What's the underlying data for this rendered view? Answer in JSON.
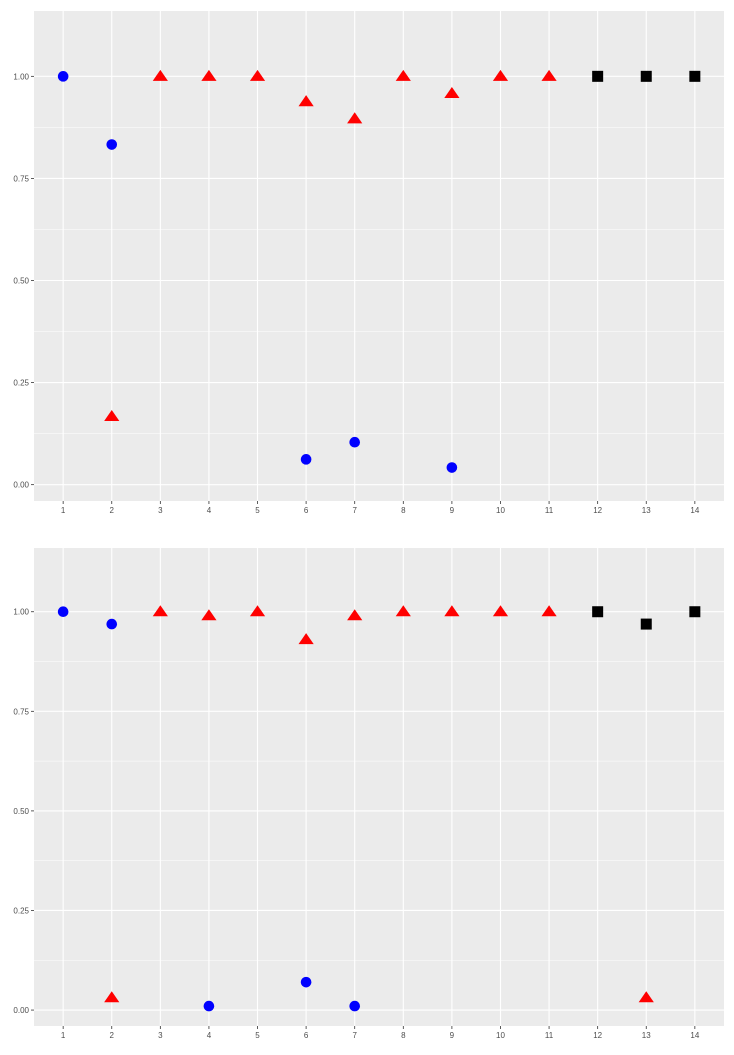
{
  "chart_data": [
    {
      "type": "scatter",
      "title": "",
      "xlabel": "",
      "ylabel": "",
      "xlim": [
        0.4,
        14.6
      ],
      "ylim": [
        -0.04,
        1.16
      ],
      "x_ticks": [
        1,
        2,
        3,
        4,
        5,
        6,
        7,
        8,
        9,
        10,
        11,
        12,
        13,
        14
      ],
      "y_ticks": [
        0.0,
        0.25,
        0.5,
        0.75,
        1.0
      ],
      "y_tick_labels": [
        "0.00",
        "0.25",
        "0.50",
        "0.75",
        "1.00"
      ],
      "grid": true,
      "legend": "none",
      "series": [
        {
          "marker": "circle",
          "color": "#0000ff",
          "points": [
            [
              1,
              1.0
            ],
            [
              2,
              0.833
            ],
            [
              6,
              0.062
            ],
            [
              7,
              0.104
            ],
            [
              9,
              0.042
            ]
          ]
        },
        {
          "marker": "triangle",
          "color": "#ff0000",
          "points": [
            [
              2,
              0.167
            ],
            [
              3,
              1.0
            ],
            [
              4,
              1.0
            ],
            [
              5,
              1.0
            ],
            [
              6,
              0.938
            ],
            [
              7,
              0.896
            ],
            [
              8,
              1.0
            ],
            [
              9,
              0.958
            ],
            [
              10,
              1.0
            ],
            [
              11,
              1.0
            ]
          ]
        },
        {
          "marker": "square",
          "color": "#000000",
          "points": [
            [
              12,
              1.0
            ],
            [
              13,
              1.0
            ],
            [
              14,
              1.0
            ]
          ]
        }
      ]
    },
    {
      "type": "scatter",
      "title": "",
      "xlabel": "",
      "ylabel": "",
      "xlim": [
        0.4,
        14.6
      ],
      "ylim": [
        -0.04,
        1.16
      ],
      "x_ticks": [
        1,
        2,
        3,
        4,
        5,
        6,
        7,
        8,
        9,
        10,
        11,
        12,
        13,
        14
      ],
      "y_ticks": [
        0.0,
        0.25,
        0.5,
        0.75,
        1.0
      ],
      "y_tick_labels": [
        "0.00",
        "0.25",
        "0.50",
        "0.75",
        "1.00"
      ],
      "grid": true,
      "legend": "none",
      "series": [
        {
          "marker": "circle",
          "color": "#0000ff",
          "points": [
            [
              1,
              1.0
            ],
            [
              2,
              0.969
            ],
            [
              4,
              0.01
            ],
            [
              6,
              0.07
            ],
            [
              7,
              0.01
            ]
          ]
        },
        {
          "marker": "triangle",
          "color": "#ff0000",
          "points": [
            [
              2,
              0.031
            ],
            [
              3,
              1.0
            ],
            [
              4,
              0.99
            ],
            [
              5,
              1.0
            ],
            [
              6,
              0.93
            ],
            [
              7,
              0.99
            ],
            [
              8,
              1.0
            ],
            [
              9,
              1.0
            ],
            [
              10,
              1.0
            ],
            [
              11,
              1.0
            ],
            [
              13,
              0.031
            ]
          ]
        },
        {
          "marker": "square",
          "color": "#000000",
          "points": [
            [
              12,
              1.0
            ],
            [
              13,
              0.969
            ],
            [
              14,
              1.0
            ]
          ]
        }
      ]
    }
  ],
  "style": {
    "page_background": "#ffffff",
    "panel_background": "#ebebeb",
    "grid_color": "#ffffff",
    "tick_text_color": "#4d4d4d",
    "tick_mark_color": "#333333"
  }
}
